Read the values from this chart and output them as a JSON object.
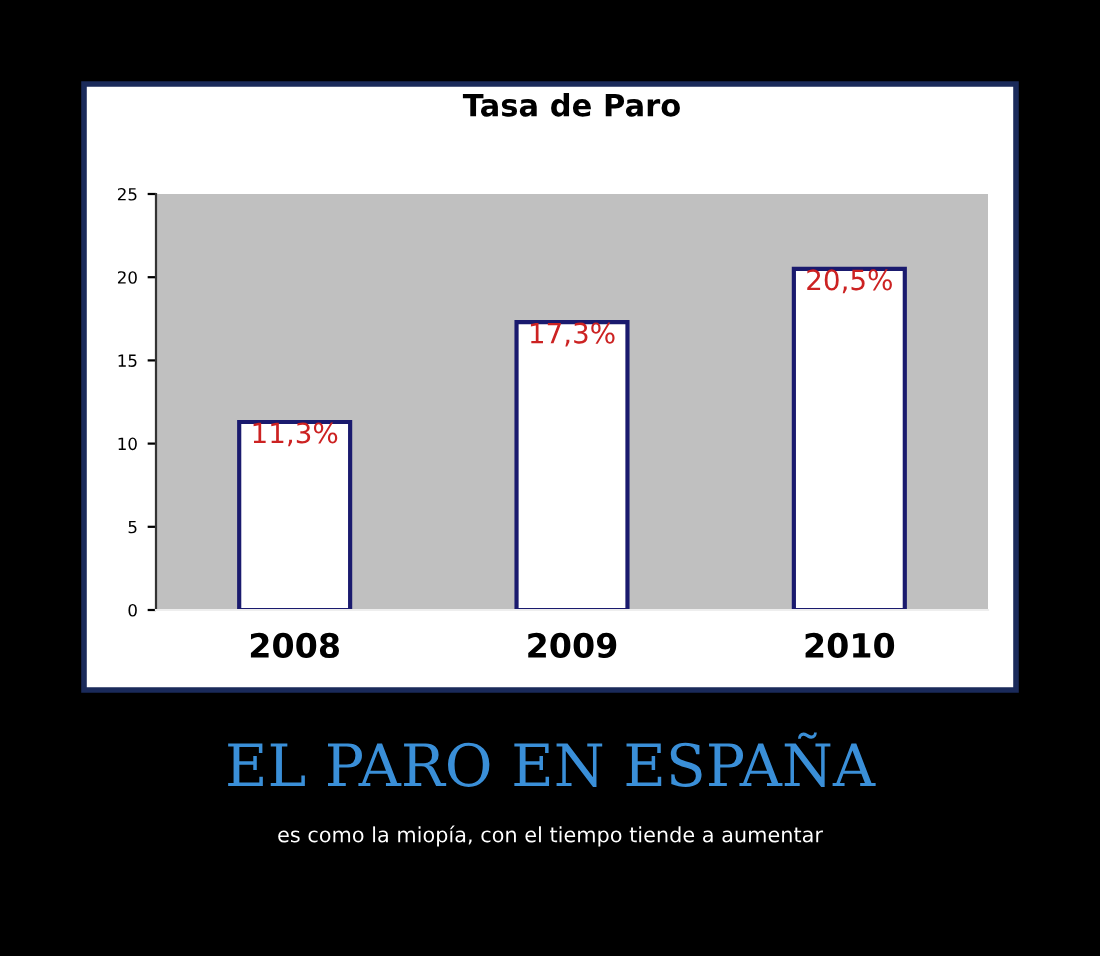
{
  "chart_data": {
    "type": "bar",
    "title": "Tasa de Paro",
    "categories": [
      "2008",
      "2009",
      "2010"
    ],
    "series": [
      {
        "color": "#ffffff",
        "values": [
          11.3,
          17.3,
          20.5
        ],
        "value_labels": [
          "11,3%",
          "17,3%",
          "20,5%"
        ]
      }
    ],
    "ylim": [
      0,
      25
    ],
    "yticks": [
      0,
      5,
      10,
      15,
      20,
      25
    ],
    "grid": false,
    "legend": false,
    "annotations": [
      "EL PARO EN ESPAÑA",
      "es como la miopía, con el tiempo tiende a aumentar"
    ]
  }
}
